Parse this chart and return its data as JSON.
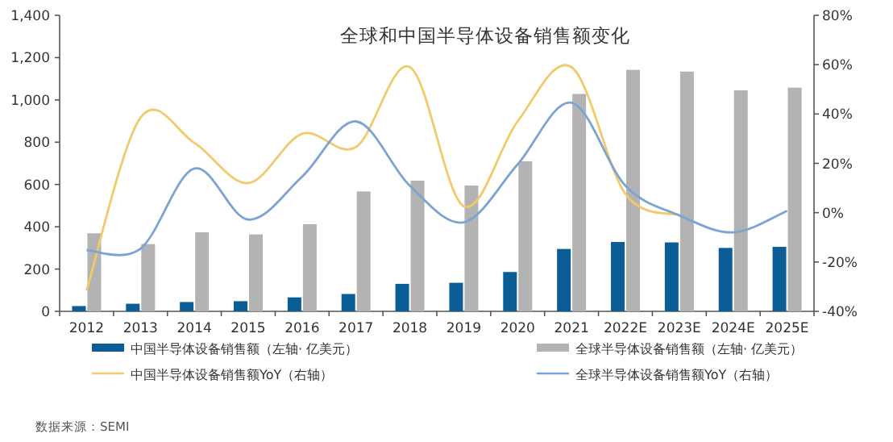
{
  "chart_data": {
    "type": "bar",
    "title": "全球和中国半导体设备销售额变化",
    "categories": [
      "2012",
      "2013",
      "2014",
      "2015",
      "2016",
      "2017",
      "2018",
      "2019",
      "2020",
      "2021",
      "2022E",
      "2023E",
      "2024E",
      "2025E"
    ],
    "series": [
      {
        "name": "中国半导体设备销售额（左轴· 亿美元）",
        "color": "#0b5e95",
        "values": [
          25,
          36,
          44,
          48,
          66,
          82,
          130,
          135,
          186,
          295,
          328,
          326,
          300,
          305
        ]
      },
      {
        "name": "全球半导体设备销售额（左轴· 亿美元）",
        "color": "#b3b3b3",
        "values": [
          369,
          318,
          374,
          364,
          412,
          567,
          618,
          595,
          710,
          1028,
          1142,
          1134,
          1045,
          1058
        ]
      },
      {
        "name": "中国半导体设备销售额YoY（右轴）",
        "type": "line",
        "axis": "y2",
        "color": "#f2c96b",
        "values": [
          -31.6,
          38.5,
          28.3,
          12,
          32,
          26.6,
          59,
          2.6,
          37,
          59,
          7.6,
          -1,
          null,
          null
        ]
      },
      {
        "name": "全球半导体设备销售额YoY（右轴）",
        "type": "line",
        "axis": "y2",
        "color": "#7ba3d4",
        "values": [
          -15.2,
          -14.6,
          17.9,
          -2.8,
          14.6,
          37,
          10.9,
          -3.9,
          19.6,
          44.6,
          10.9,
          -1.1,
          -8,
          0.7
        ]
      }
    ],
    "ylim": [
      0,
      1400
    ],
    "yticks": [
      0,
      {
        "value": 200,
        "label": "200"
      },
      {
        "value": 400,
        "label": "400"
      },
      {
        "value": 600,
        "label": "600"
      },
      {
        "value": 800,
        "label": "800"
      },
      {
        "value": 1000,
        "label": "1,000"
      },
      {
        "value": 1200,
        "label": "1,200"
      },
      {
        "value": 1400,
        "label": "1,400"
      }
    ],
    "y2lim": [
      -40,
      80
    ],
    "y2ticks": [
      {
        "value": -40,
        "label": "-40%"
      },
      {
        "value": -20,
        "label": "-20%"
      },
      {
        "value": 0,
        "label": "0%"
      },
      {
        "value": 20,
        "label": "20%"
      },
      {
        "value": 40,
        "label": "40%"
      },
      {
        "value": 60,
        "label": "60%"
      },
      {
        "value": 80,
        "label": "80%"
      }
    ],
    "legend": "bottom",
    "grid": false,
    "annotations": [
      "数据来源：SEMI"
    ]
  }
}
